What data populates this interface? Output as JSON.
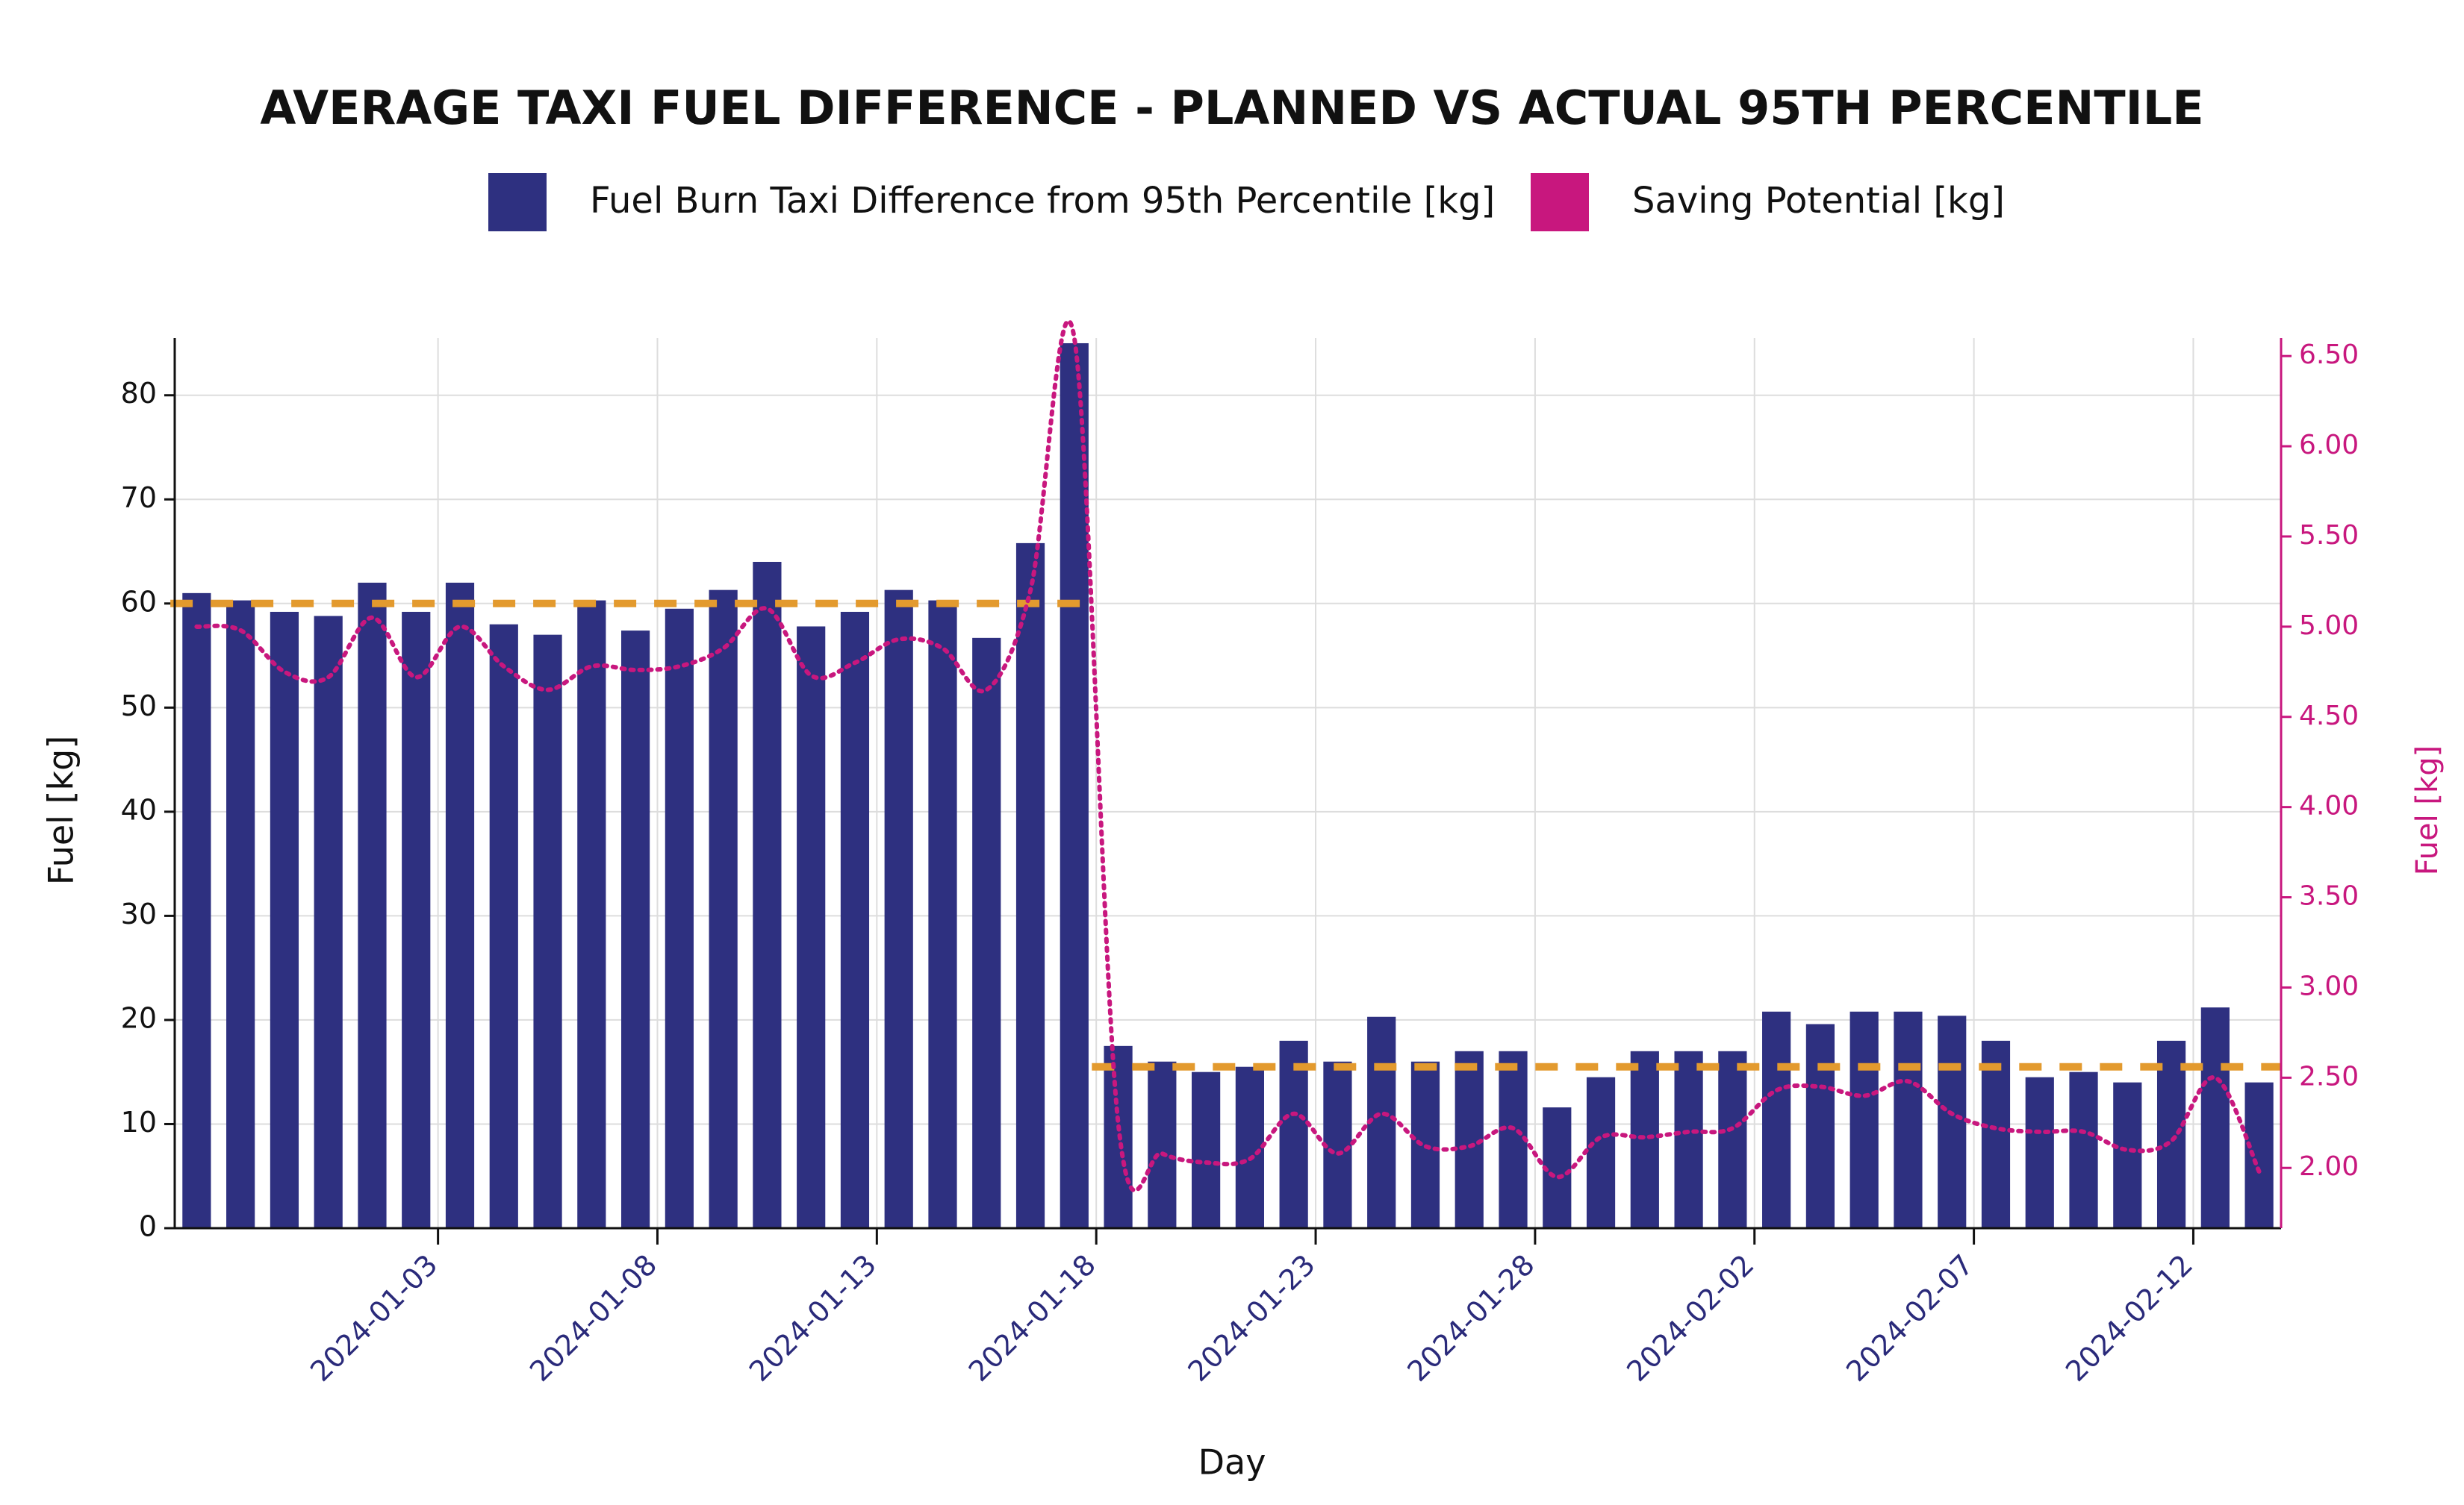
{
  "chart_data": {
    "type": "bar-line",
    "title": "AVERAGE TAXI FUEL DIFFERENCE - PLANNED VS ACTUAL 95TH PERCENTILE",
    "x_label": "Day",
    "y_label": "Fuel [kg]",
    "y2_label": "Fuel [kg]",
    "x": [
      "2023-12-28",
      "2023-12-29",
      "2023-12-30",
      "2023-12-31",
      "2024-01-01",
      "2024-01-02",
      "2024-01-03",
      "2024-01-04",
      "2024-01-05",
      "2024-01-06",
      "2024-01-07",
      "2024-01-08",
      "2024-01-09",
      "2024-01-10",
      "2024-01-11",
      "2024-01-12",
      "2024-01-13",
      "2024-01-14",
      "2024-01-15",
      "2024-01-16",
      "2024-01-17",
      "2024-01-18",
      "2024-01-19",
      "2024-01-20",
      "2024-01-21",
      "2024-01-22",
      "2024-01-23",
      "2024-01-24",
      "2024-01-25",
      "2024-01-26",
      "2024-01-27",
      "2024-01-28",
      "2024-01-29",
      "2024-01-30",
      "2024-01-31",
      "2024-02-01",
      "2024-02-02",
      "2024-02-03",
      "2024-02-04",
      "2024-02-05",
      "2024-02-06",
      "2024-02-07",
      "2024-02-08",
      "2024-02-09",
      "2024-02-10",
      "2024-02-11",
      "2024-02-12",
      "2024-02-13"
    ],
    "series": [
      {
        "name": "Fuel Burn Taxi Difference from 95th Percentile [kg]",
        "kind": "bar",
        "color": "#2e3080",
        "values": [
          61,
          60.3,
          59.2,
          58.8,
          62,
          59.2,
          62,
          58,
          57,
          60.3,
          57.4,
          59.5,
          61.3,
          64,
          57.8,
          59.2,
          61.3,
          60.3,
          56.7,
          65.8,
          85,
          17.5,
          16,
          15,
          15.5,
          18,
          16,
          20.3,
          16,
          17,
          17,
          11.6,
          14.5,
          17,
          17,
          17,
          20.8,
          19.6,
          20.8,
          20.8,
          20.4,
          18,
          14.5,
          15,
          14,
          18,
          21.2,
          14
        ]
      },
      {
        "name": "Saving Potential [kg]",
        "kind": "line",
        "axis": "y2",
        "color": "#c8177e",
        "values": [
          5.0,
          4.98,
          4.75,
          4.72,
          5.05,
          4.72,
          5.0,
          4.78,
          4.65,
          4.78,
          4.76,
          4.78,
          4.88,
          5.1,
          4.73,
          4.8,
          4.93,
          4.88,
          4.65,
          5.2,
          6.6,
          2.25,
          2.08,
          2.03,
          2.05,
          2.3,
          2.08,
          2.3,
          2.12,
          2.12,
          2.22,
          1.95,
          2.17,
          2.17,
          2.2,
          2.22,
          2.43,
          2.45,
          2.4,
          2.48,
          2.3,
          2.22,
          2.2,
          2.2,
          2.1,
          2.15,
          2.5,
          1.98
        ]
      }
    ],
    "reference_lines": [
      {
        "value": 60,
        "from": "2023-12-28",
        "to": "2024-01-17",
        "color": "#e39a2e"
      },
      {
        "value": 15.5,
        "from": "2024-01-18",
        "to": "2024-02-13",
        "color": "#e39a2e"
      }
    ],
    "xlim": [
      "2023-12-28",
      "2024-02-14"
    ],
    "xticks": [
      "2024-01-03",
      "2024-01-08",
      "2024-01-13",
      "2024-01-18",
      "2024-01-23",
      "2024-01-28",
      "2024-02-02",
      "2024-02-07",
      "2024-02-12"
    ],
    "ylim": [
      0,
      85.5
    ],
    "yticks": [
      0,
      10,
      20,
      30,
      40,
      50,
      60,
      70,
      80
    ],
    "y2lim": [
      1.666,
      6.6
    ],
    "y2ticks": [
      {
        "value": 2,
        "label": "2.00"
      },
      {
        "value": 2.5,
        "label": "2.50"
      },
      {
        "value": 3,
        "label": "3.00"
      },
      {
        "value": 3.5,
        "label": "3.50"
      },
      {
        "value": 4,
        "label": "4.00"
      },
      {
        "value": 4.5,
        "label": "4.50"
      },
      {
        "value": 5,
        "label": "5.00"
      },
      {
        "value": 5.5,
        "label": "5.50"
      },
      {
        "value": 6,
        "label": "6.00"
      },
      {
        "value": 6.5,
        "label": "6.50"
      }
    ],
    "grid": true
  }
}
